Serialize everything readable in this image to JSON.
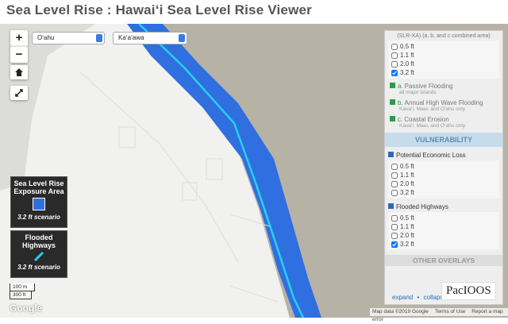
{
  "header": {
    "title": "Sea Level Rise : Hawaiʻi Sea Level Rise Viewer"
  },
  "map_controls": {
    "zoom_in": "+",
    "zoom_out": "−",
    "island": "Oʻahu",
    "area": "Kaʻaʻawa"
  },
  "legends": [
    {
      "title": "Sea Level Rise Exposure Area",
      "scenario": "3.2 ft scenario"
    },
    {
      "title": "Flooded Highways",
      "scenario": "3.2 ft scenario"
    }
  ],
  "scale": {
    "metric": "100 m",
    "imperial": "300 ft"
  },
  "attribution": {
    "logo": "Google",
    "map_data": "Map data ©2019 Google",
    "terms": "Terms of Use",
    "report": "Report a map error"
  },
  "panel": {
    "exposure": {
      "caption": "(SLR-XA) (a, b, and c combined area)",
      "options": [
        {
          "label": "0.5 ft",
          "checked": false
        },
        {
          "label": "1.1 ft",
          "checked": false
        },
        {
          "label": "2.0 ft",
          "checked": false
        },
        {
          "label": "3.2 ft",
          "checked": true
        }
      ]
    },
    "components": [
      {
        "prefix": "a.",
        "label": "Passive Flooding",
        "note": "all major islands"
      },
      {
        "prefix": "b.",
        "label": "Annual High Wave Flooding",
        "note": "Kauaʻi, Maui, and Oʻahu only"
      },
      {
        "prefix": "c.",
        "label": "Coastal Erosion",
        "note": "Kauaʻi, Maui, and Oʻahu only"
      }
    ],
    "section": "VULNERABILITY",
    "groups": [
      {
        "title": "Potential Economic Loss",
        "options": [
          {
            "label": "0.5 ft",
            "checked": false
          },
          {
            "label": "1.1 ft",
            "checked": false
          },
          {
            "label": "2.0 ft",
            "checked": false
          },
          {
            "label": "3.2 ft",
            "checked": false
          }
        ]
      },
      {
        "title": "Flooded Highways",
        "options": [
          {
            "label": "0.5 ft",
            "checked": false
          },
          {
            "label": "1.1 ft",
            "checked": false
          },
          {
            "label": "2.0 ft",
            "checked": false
          },
          {
            "label": "3.2 ft",
            "checked": true
          }
        ]
      }
    ],
    "other": "OTHER OVERLAYS",
    "expand": "expand",
    "separator": "•",
    "collapse": "collapse"
  },
  "logo": "PacIOOS"
}
